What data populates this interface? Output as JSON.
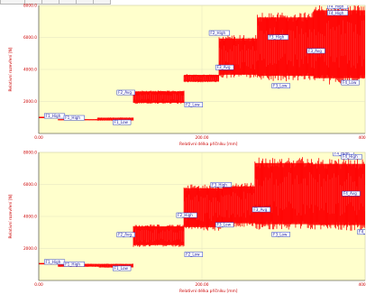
{
  "chart_data": [
    {
      "type": "area",
      "xlabel": "Relativní délka příčníku [mm]",
      "ylabel": "Relativní rozevření [N]",
      "xlim": [
        0,
        400
      ],
      "ylim": [
        0,
        8000
      ],
      "x_ticks": [
        "0.00",
        "200.00",
        "400.00"
      ],
      "x_tick_values": [
        0,
        200,
        400
      ],
      "y_ticks": [
        "2000.0",
        "4000.0",
        "6000.0",
        "8000.0"
      ],
      "y_tick_values": [
        2000,
        4000,
        6000,
        8000
      ],
      "grid": true,
      "colors": {
        "series": "#ff0000",
        "plot_bg": "#ffffcc",
        "axis_text": "#cc0000",
        "label_border": "#2a3cc8",
        "label_text": "#1a1a9a"
      },
      "bands": [
        {
          "x": [
            0,
            24
          ],
          "low": 1000,
          "high": 1000
        },
        {
          "x": [
            24,
            72
          ],
          "low": 820,
          "high": 900
        },
        {
          "x": [
            72,
            116
          ],
          "low": 800,
          "high": 1000
        },
        {
          "x": [
            116,
            178
          ],
          "low": 1850,
          "high": 2700
        },
        {
          "x": [
            178,
            221
          ],
          "low": 3200,
          "high": 3700
        },
        {
          "x": [
            221,
            268
          ],
          "low": 3450,
          "high": 6150
        },
        {
          "x": [
            268,
            337
          ],
          "low": 3250,
          "high": 7600
        },
        {
          "x": [
            337,
            422
          ],
          "low": 3050,
          "high": 8100
        },
        {
          "x": [
            422,
            560
          ],
          "low": 3100,
          "high": 7700
        }
      ],
      "labels": [
        {
          "text": "F1_High",
          "x": 8,
          "y": 1020
        },
        {
          "text": "F1_High",
          "x": 32,
          "y": 900
        },
        {
          "text": "F1_Low",
          "x": 92,
          "y": 620
        },
        {
          "text": "F2_Avg",
          "x": 97,
          "y": 2480
        },
        {
          "text": "F2_Low",
          "x": 180,
          "y": 1720
        },
        {
          "text": "F2_High",
          "x": 210,
          "y": 6200
        },
        {
          "text": "F3_Avg",
          "x": 218,
          "y": 4050
        },
        {
          "text": "F3_High",
          "x": 282,
          "y": 5930
        },
        {
          "text": "F3_Low",
          "x": 287,
          "y": 2900
        },
        {
          "text": "F3_Avg",
          "x": 330,
          "y": 5080
        },
        {
          "text": "F4_High",
          "x": 355,
          "y": 7850
        },
        {
          "text": "F4_High",
          "x": 355,
          "y": 7450
        },
        {
          "text": "F4_Low",
          "x": 372,
          "y": 3100
        },
        {
          "text": "F4_High",
          "x": 438,
          "y": 8180
        },
        {
          "text": "F4_High",
          "x": 455,
          "y": 7850
        },
        {
          "text": "F4_Avg",
          "x": 455,
          "y": 3450
        },
        {
          "text": "F4_Avg",
          "x": 470,
          "y": 5400
        },
        {
          "text": "F4_Avg",
          "x": 545,
          "y": 5400
        },
        {
          "text": "F4_Low",
          "x": 575,
          "y": 3300
        }
      ]
    },
    {
      "type": "area",
      "xlabel": "Relativní délka příčníku [mm]",
      "ylabel": "Relativní rozevření [N]",
      "xlim": [
        0,
        400
      ],
      "ylim": [
        0,
        8000
      ],
      "x_ticks": [
        "0.00",
        "200.00",
        "400.00"
      ],
      "x_tick_values": [
        0,
        200,
        400
      ],
      "y_ticks": [
        "2000.0",
        "4000.0",
        "6000.0",
        "8000.0"
      ],
      "y_tick_values": [
        2000,
        4000,
        6000,
        8000
      ],
      "grid": true,
      "colors": {
        "series": "#ff0000",
        "plot_bg": "#ffffcc",
        "axis_text": "#cc0000",
        "label_border": "#2a3cc8",
        "label_text": "#1a1a9a"
      },
      "bands": [
        {
          "x": [
            0,
            24
          ],
          "low": 1050,
          "high": 1050
        },
        {
          "x": [
            24,
            74
          ],
          "low": 850,
          "high": 1050
        },
        {
          "x": [
            74,
            116
          ],
          "low": 800,
          "high": 1050
        },
        {
          "x": [
            116,
            178
          ],
          "low": 2100,
          "high": 3500
        },
        {
          "x": [
            178,
            225
          ],
          "low": 3100,
          "high": 6000
        },
        {
          "x": [
            225,
            265
          ],
          "low": 3350,
          "high": 6100
        },
        {
          "x": [
            265,
            336
          ],
          "low": 3150,
          "high": 7700
        },
        {
          "x": [
            336,
            405
          ],
          "low": 3100,
          "high": 7650
        },
        {
          "x": [
            405,
            478
          ],
          "low": 3000,
          "high": 7700
        },
        {
          "x": [
            478,
            560
          ],
          "low": 2750,
          "high": 7950
        }
      ],
      "labels": [
        {
          "text": "F1_High",
          "x": 8,
          "y": 1080
        },
        {
          "text": "F1_High",
          "x": 32,
          "y": 940
        },
        {
          "text": "F1_Low",
          "x": 92,
          "y": 680
        },
        {
          "text": "F2_Avg",
          "x": 97,
          "y": 2780
        },
        {
          "text": "F2_Low",
          "x": 180,
          "y": 1550
        },
        {
          "text": "F2_High",
          "x": 170,
          "y": 4000
        },
        {
          "text": "F3_High",
          "x": 212,
          "y": 5900
        },
        {
          "text": "F3_Low",
          "x": 218,
          "y": 3400
        },
        {
          "text": "F3_Avg",
          "x": 263,
          "y": 4350
        },
        {
          "text": "F3_Low",
          "x": 287,
          "y": 2800
        },
        {
          "text": "F4_High",
          "x": 362,
          "y": 7850
        },
        {
          "text": "F4_High",
          "x": 372,
          "y": 7650
        },
        {
          "text": "F4_Avg",
          "x": 373,
          "y": 5350
        },
        {
          "text": "F4_Low",
          "x": 392,
          "y": 2950
        },
        {
          "text": "F4_High",
          "x": 438,
          "y": 7850
        },
        {
          "text": "F4_Avg",
          "x": 465,
          "y": 5400
        },
        {
          "text": "F4_Low",
          "x": 525,
          "y": 3050
        },
        {
          "text": "F4_Avg",
          "x": 558,
          "y": 5600
        }
      ]
    }
  ]
}
